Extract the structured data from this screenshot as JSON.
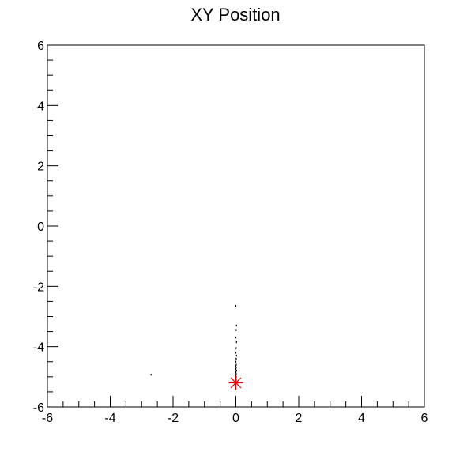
{
  "chart_data": {
    "type": "scatter",
    "title": "XY Position",
    "xlabel": "",
    "ylabel": "",
    "xlim": [
      -6,
      6
    ],
    "ylim": [
      -6,
      6
    ],
    "grid": false,
    "x_ticks": [
      "-6",
      "-4",
      "-2",
      "0",
      "2",
      "4",
      "6"
    ],
    "y_ticks": [
      "6",
      "4",
      "2",
      "0",
      "-2",
      "-4",
      "-6"
    ],
    "series": [
      {
        "color": "#000000",
        "points": [
          {
            "x": -2.7,
            "y": -4.93
          },
          {
            "x": 0.0,
            "y": -2.65
          },
          {
            "x": 0.02,
            "y": -3.3
          },
          {
            "x": 0.01,
            "y": -3.45
          },
          {
            "x": 0.0,
            "y": -3.7
          },
          {
            "x": 0.02,
            "y": -3.85
          },
          {
            "x": 0.01,
            "y": -4.05
          },
          {
            "x": 0.0,
            "y": -4.2
          },
          {
            "x": 0.02,
            "y": -4.3
          },
          {
            "x": 0.01,
            "y": -4.4
          },
          {
            "x": 0.0,
            "y": -4.5
          },
          {
            "x": 0.01,
            "y": -4.6
          },
          {
            "x": 0.0,
            "y": -4.65
          },
          {
            "x": 0.01,
            "y": -4.7
          },
          {
            "x": 0.0,
            "y": -4.75
          },
          {
            "x": 0.02,
            "y": -4.8
          },
          {
            "x": 0.0,
            "y": -4.85
          },
          {
            "x": 0.01,
            "y": -4.9
          },
          {
            "x": 0.0,
            "y": -4.95
          },
          {
            "x": 0.01,
            "y": -5.0
          },
          {
            "x": 0.0,
            "y": -5.05
          },
          {
            "x": 0.01,
            "y": -5.1
          },
          {
            "x": 0.0,
            "y": -5.15
          }
        ]
      }
    ],
    "markers": [
      {
        "x": 0.0,
        "y": -5.2,
        "color": "#e00000",
        "shape": "asterisk"
      }
    ]
  }
}
